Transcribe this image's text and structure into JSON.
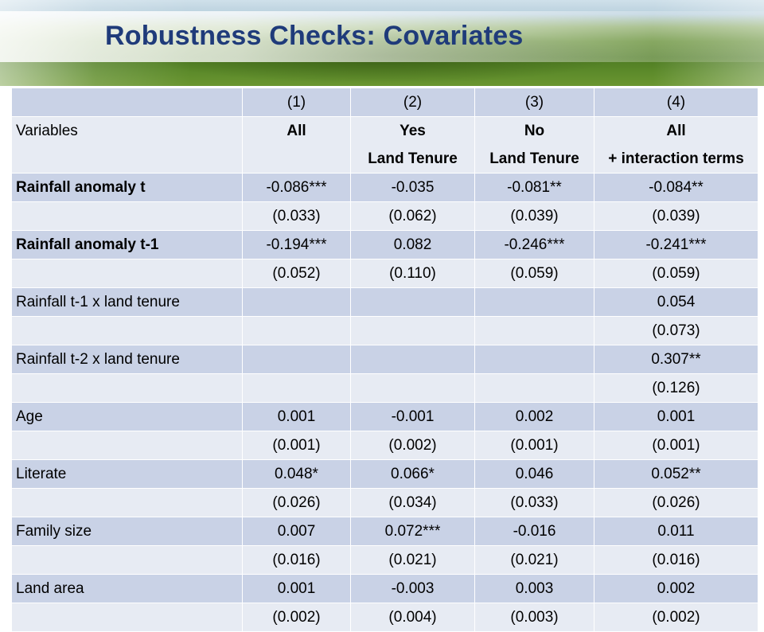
{
  "title": "Robustness Checks: Covariates",
  "header": {
    "col_numbers": [
      "(1)",
      "(2)",
      "(3)",
      "(4)"
    ],
    "variables_label": "Variables",
    "col_names": [
      {
        "line1": "All",
        "line2": ""
      },
      {
        "line1": "Yes",
        "line2": "Land Tenure"
      },
      {
        "line1": "No",
        "line2": "Land Tenure"
      },
      {
        "line1": "All",
        "line2": "+ interaction terms"
      }
    ]
  },
  "rows": [
    {
      "label": "Rainfall anomaly t",
      "bold": true,
      "coef": [
        "-0.086***",
        "-0.035",
        "-0.081**",
        "-0.084**"
      ],
      "se": [
        "(0.033)",
        "(0.062)",
        "(0.039)",
        "(0.039)"
      ]
    },
    {
      "label": "Rainfall anomaly t-1",
      "bold": true,
      "coef": [
        "-0.194***",
        "0.082",
        "-0.246***",
        "-0.241***"
      ],
      "se": [
        "(0.052)",
        "(0.110)",
        "(0.059)",
        "(0.059)"
      ]
    },
    {
      "label": "Rainfall t-1 x land tenure",
      "bold": false,
      "coef": [
        "",
        "",
        "",
        "0.054"
      ],
      "se": [
        "",
        "",
        "",
        "(0.073)"
      ]
    },
    {
      "label": "Rainfall t-2 x land tenure",
      "bold": false,
      "coef": [
        "",
        "",
        "",
        "0.307**"
      ],
      "se": [
        "",
        "",
        "",
        "(0.126)"
      ]
    },
    {
      "label": "Age",
      "bold": false,
      "coef": [
        "0.001",
        "-0.001",
        "0.002",
        "0.001"
      ],
      "se": [
        "(0.001)",
        "(0.002)",
        "(0.001)",
        "(0.001)"
      ]
    },
    {
      "label": "Literate",
      "bold": false,
      "coef": [
        "0.048*",
        "0.066*",
        "0.046",
        "0.052**"
      ],
      "se": [
        "(0.026)",
        "(0.034)",
        "(0.033)",
        "(0.026)"
      ]
    },
    {
      "label": "Family size",
      "bold": false,
      "coef": [
        "0.007",
        "0.072***",
        "-0.016",
        "0.011"
      ],
      "se": [
        "(0.016)",
        "(0.021)",
        "(0.021)",
        "(0.016)"
      ]
    },
    {
      "label": "Land area",
      "bold": false,
      "coef": [
        "0.001",
        "-0.003",
        "0.003",
        "0.002"
      ],
      "se": [
        "(0.002)",
        "(0.004)",
        "(0.003)",
        "(0.002)"
      ]
    }
  ]
}
